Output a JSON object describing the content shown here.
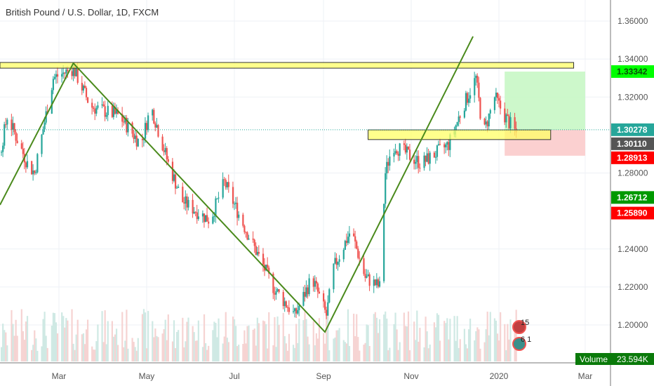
{
  "header": {
    "title": "British Pound / U.S. Dollar, 1D, FXCM"
  },
  "chart_data": {
    "type": "candlestick",
    "title": "British Pound / U.S. Dollar, 1D, FXCM",
    "x_unit": "days since 2019-01-01",
    "ylim": [
      1.19,
      1.372
    ],
    "y_ticks": [
      "1.36000",
      "1.34000",
      "1.32000",
      "1.28000",
      "1.24000",
      "1.22000",
      "1.20000"
    ],
    "y_tick_values": [
      1.36,
      1.34,
      1.32,
      1.28,
      1.24,
      1.22,
      1.2
    ],
    "x_ticks": [
      {
        "label": "Mar",
        "day": 59
      },
      {
        "label": "May",
        "day": 120
      },
      {
        "label": "Jul",
        "day": 181
      },
      {
        "label": "Sep",
        "day": 243
      },
      {
        "label": "Nov",
        "day": 304
      },
      {
        "label": "2020",
        "day": 365
      },
      {
        "label": "Mar",
        "day": 425
      }
    ],
    "close_path": [
      [
        18,
        1.29
      ],
      [
        23,
        1.31
      ],
      [
        37,
        1.285
      ],
      [
        42,
        1.28
      ],
      [
        55,
        1.33
      ],
      [
        69,
        1.335
      ],
      [
        81,
        1.315
      ],
      [
        101,
        1.31
      ],
      [
        116,
        1.295
      ],
      [
        123,
        1.315
      ],
      [
        135,
        1.285
      ],
      [
        145,
        1.265
      ],
      [
        164,
        1.255
      ],
      [
        174,
        1.275
      ],
      [
        189,
        1.25
      ],
      [
        208,
        1.22
      ],
      [
        223,
        1.205
      ],
      [
        235,
        1.225
      ],
      [
        245,
        1.205
      ],
      [
        250,
        1.23
      ],
      [
        262,
        1.25
      ],
      [
        272,
        1.225
      ],
      [
        282,
        1.22
      ],
      [
        286,
        1.28
      ],
      [
        291,
        1.295
      ],
      [
        311,
        1.285
      ],
      [
        330,
        1.295
      ],
      [
        340,
        1.315
      ],
      [
        349,
        1.33
      ],
      [
        354,
        1.3
      ],
      [
        362,
        1.32
      ],
      [
        369,
        1.31
      ],
      [
        377,
        1.301
      ]
    ],
    "trendline": [
      [
        18,
        1.2632
      ],
      [
        69,
        1.3378
      ],
      [
        244,
        1.1963
      ],
      [
        347,
        1.3519
      ]
    ],
    "zones": [
      {
        "from": 18,
        "to": 417,
        "top": 1.3382,
        "bottom": 1.3352
      },
      {
        "from": 274,
        "to": 401,
        "top": 1.3027,
        "bottom": 1.2976
      }
    ],
    "position": {
      "from": 369,
      "to": 425,
      "target": 1.3334,
      "entry": 1.3027,
      "stop": 1.2891
    },
    "price_labels": [
      {
        "text": "1.33342",
        "value": 1.33342,
        "bg": "#00ff00",
        "fg": "#0a4a0a"
      },
      {
        "text": "1.30278",
        "value": 1.30278,
        "bg": "#26a69a",
        "fg": "#ffffff"
      },
      {
        "text": "1.30110",
        "value": 1.3011,
        "bg": "#555555",
        "fg": "#ffffff"
      },
      {
        "text": "1.28913",
        "value": 1.28913,
        "bg": "#ff0000",
        "fg": "#ffffff"
      },
      {
        "text": "1.26712",
        "value": 1.26712,
        "bg": "#009900",
        "fg": "#ffffff"
      },
      {
        "text": "1.25890",
        "value": 1.2589,
        "bg": "#ff0000",
        "fg": "#ffffff"
      }
    ],
    "volume_label": "Volume",
    "volume_value": "23.594K",
    "events": [
      "15",
      "6 1"
    ],
    "colors": {
      "up": "#26a69a",
      "down": "#ef5350",
      "trend": "#4a8a1c",
      "zone": "#ffff66"
    }
  }
}
